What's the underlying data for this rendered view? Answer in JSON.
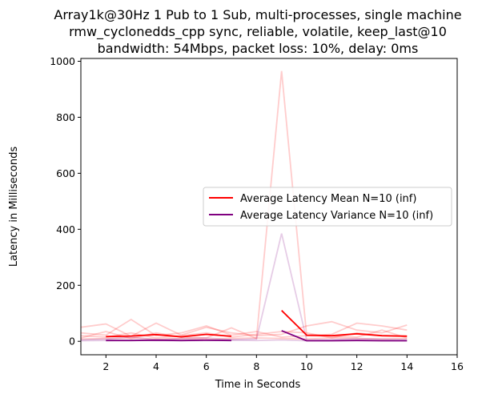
{
  "chart_data": {
    "type": "line",
    "title_lines": [
      "Array1k@30Hz 1 Pub to 1 Sub, multi-processes, single machine",
      "rmw_cyclonedds_cpp sync, reliable, volatile, keep_last@10",
      "bandwidth: 54Mbps, packet loss: 10%, delay: 0ms"
    ],
    "xlabel": "Time in Seconds",
    "ylabel": "Latency in Milliseconds",
    "xlim": [
      1,
      16
    ],
    "ylim": [
      -48,
      1010
    ],
    "xticks": [
      "2",
      "4",
      "6",
      "8",
      "10",
      "12",
      "14",
      "16"
    ],
    "yticks": [
      "0",
      "200",
      "400",
      "600",
      "800",
      "1000"
    ],
    "grid": false,
    "legend_position": "center-right",
    "series": [
      {
        "name": "Average Latency Mean N=10 (inf)",
        "color": "#ff0000",
        "segments": [
          {
            "x": [
              2,
              3,
              4,
              5,
              6,
              7
            ],
            "y": [
              17,
              19,
              24,
              16,
              25,
              18
            ]
          },
          {
            "x": [
              9,
              10,
              11,
              12,
              13,
              14
            ],
            "y": [
              110,
              22,
              20,
              27,
              20,
              18
            ]
          }
        ]
      },
      {
        "name": "Average Latency Variance N=10 (inf)",
        "color": "#800080",
        "segments": [
          {
            "x": [
              2,
              3,
              4,
              5,
              6,
              7
            ],
            "y": [
              3,
              3,
              4,
              3,
              4,
              3
            ]
          },
          {
            "x": [
              9,
              10,
              11,
              12,
              13,
              14
            ],
            "y": [
              38,
              2,
              2,
              3,
              2,
              2
            ]
          }
        ]
      }
    ],
    "background_runs": [
      {
        "color": "#ff0000",
        "x": [
          1,
          2,
          3,
          4,
          5,
          6,
          7,
          8,
          9,
          10,
          11,
          12,
          13,
          14
        ],
        "y": [
          50,
          62,
          18,
          65,
          22,
          50,
          30,
          20,
          25,
          55,
          70,
          40,
          30,
          58
        ]
      },
      {
        "color": "#ff0000",
        "x": [
          1,
          2,
          3,
          4,
          5,
          6,
          7,
          8,
          9,
          10,
          11,
          12,
          13,
          14
        ],
        "y": [
          30,
          22,
          78,
          20,
          30,
          55,
          22,
          35,
          15,
          20,
          25,
          65,
          55,
          40
        ]
      },
      {
        "color": "#ff0000",
        "x": [
          1,
          2,
          3,
          4,
          5,
          6,
          7,
          8,
          9,
          10,
          11,
          12,
          13,
          14
        ],
        "y": [
          12,
          35,
          10,
          30,
          15,
          12,
          48,
          10,
          965,
          20,
          18,
          15,
          40,
          12
        ]
      },
      {
        "color": "#ff0000",
        "x": [
          1,
          2,
          3,
          4,
          5,
          6,
          7,
          8,
          9,
          10,
          11,
          12,
          13,
          14
        ],
        "y": [
          20,
          15,
          30,
          12,
          20,
          30,
          15,
          25,
          35,
          30,
          12,
          30,
          20,
          20
        ]
      },
      {
        "color": "#ff0000",
        "x": [
          1,
          2,
          3,
          4,
          5,
          6,
          7,
          8,
          9,
          10,
          11,
          12,
          13,
          14
        ],
        "y": [
          8,
          10,
          12,
          8,
          10,
          8,
          10,
          12,
          10,
          8,
          12,
          10,
          8,
          10
        ]
      },
      {
        "color": "#800080",
        "x": [
          1,
          2,
          3,
          4,
          5,
          6,
          7,
          8,
          9,
          10,
          11,
          12,
          13,
          14
        ],
        "y": [
          5,
          8,
          15,
          6,
          10,
          12,
          6,
          8,
          385,
          5,
          6,
          10,
          8,
          6
        ]
      },
      {
        "color": "#800080",
        "x": [
          1,
          2,
          3,
          4,
          5,
          6,
          7,
          8,
          9,
          10,
          11,
          12,
          13,
          14
        ],
        "y": [
          2,
          3,
          4,
          3,
          2,
          3,
          4,
          3,
          5,
          2,
          3,
          4,
          3,
          2
        ]
      }
    ]
  }
}
